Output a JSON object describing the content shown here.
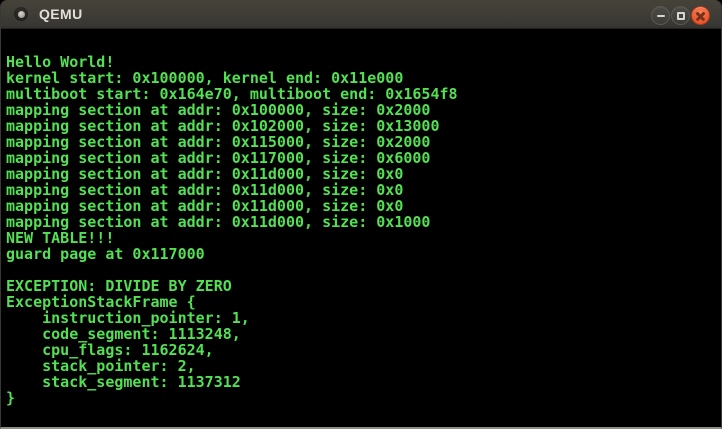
{
  "window": {
    "title": "QEMU",
    "icons": {
      "window_icon": "circle-dot-icon",
      "minimize": "minus-shape",
      "maximize": "square-outline-shape",
      "close": "cross-shape"
    },
    "colors": {
      "titlebar_bg": "#3a3834",
      "titlebar_text": "#e3dfd8",
      "close_button": "#ee5a2e"
    }
  },
  "terminal": {
    "colors": {
      "background": "#000000",
      "text": "#53e053"
    },
    "lines": [
      "",
      "Hello World!",
      "kernel start: 0x100000, kernel end: 0x11e000",
      "multiboot start: 0x164e70, multiboot end: 0x1654f8",
      "mapping section at addr: 0x100000, size: 0x2000",
      "mapping section at addr: 0x102000, size: 0x13000",
      "mapping section at addr: 0x115000, size: 0x2000",
      "mapping section at addr: 0x117000, size: 0x6000",
      "mapping section at addr: 0x11d000, size: 0x0",
      "mapping section at addr: 0x11d000, size: 0x0",
      "mapping section at addr: 0x11d000, size: 0x0",
      "mapping section at addr: 0x11d000, size: 0x1000",
      "NEW TABLE!!!",
      "guard page at 0x117000",
      "",
      "EXCEPTION: DIVIDE BY ZERO",
      "ExceptionStackFrame {",
      "    instruction_pointer: 1,",
      "    code_segment: 1113248,",
      "    cpu_flags: 1162624,",
      "    stack_pointer: 2,",
      "    stack_segment: 1137312",
      "}"
    ]
  }
}
